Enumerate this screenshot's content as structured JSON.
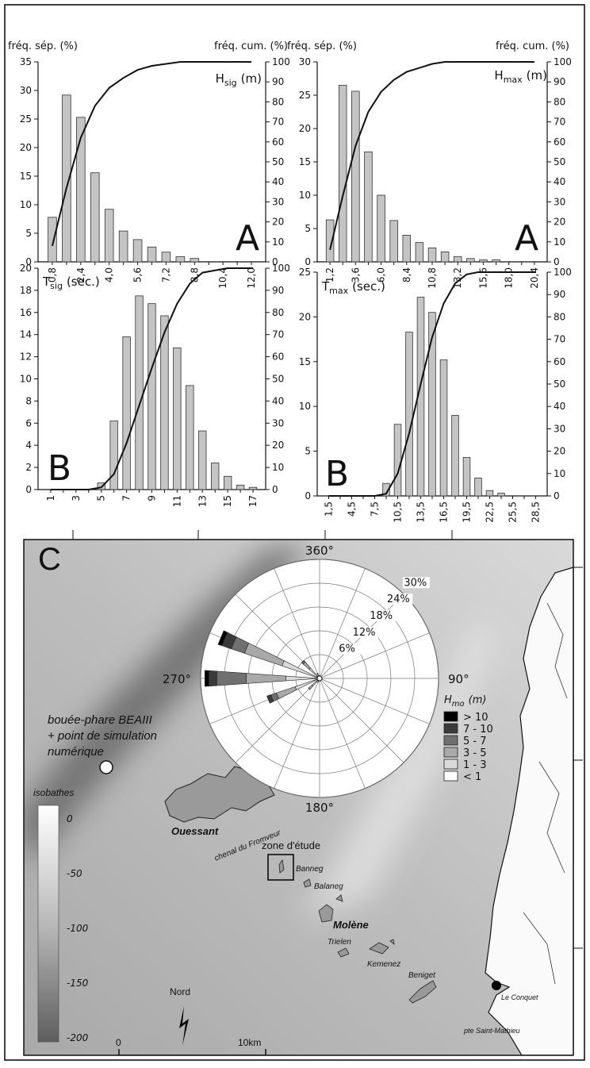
{
  "chart_data": [
    {
      "type": "bar",
      "panel": "A",
      "title": "H",
      "title_sub": "sig",
      "title_unit": "(m)",
      "ylabel": "fréq. sép. (%)",
      "y2label": "fréq. cum. (%)",
      "categories": [
        "0,8",
        null,
        "2,4",
        null,
        "4,0",
        null,
        "5,6",
        null,
        "7,2",
        null,
        "8,8",
        null,
        "10,4",
        null,
        "12,0"
      ],
      "series": [
        {
          "color": "#c4c4c4",
          "values": [
            7.8,
            29.2,
            25.3,
            15.6,
            9.2,
            5.4,
            3.9,
            2.6,
            1.7,
            0.9,
            0.6,
            0,
            0,
            0,
            0
          ]
        },
        {
          "type": "line",
          "axis": "y2",
          "color": "#111111",
          "values": [
            8,
            37,
            62,
            78,
            87,
            92,
            96,
            98,
            99,
            100,
            100,
            100,
            100,
            100,
            100
          ]
        }
      ],
      "ylim": [
        0,
        35
      ],
      "yticks": [
        0,
        5,
        10,
        15,
        20,
        25,
        30,
        35
      ],
      "y2lim": [
        0,
        100
      ],
      "y2ticks": [
        0,
        10,
        20,
        30,
        40,
        50,
        60,
        70,
        80,
        90,
        100
      ]
    },
    {
      "type": "bar",
      "panel": "A",
      "title": "H",
      "title_sub": "max",
      "title_unit": "(m)",
      "ylabel": "fréq. sép. (%)",
      "y2label": "fréq. cum. (%)",
      "categories": [
        "1,2",
        null,
        "3,6",
        null,
        "6,0",
        null,
        "8,4",
        null,
        "10,8",
        null,
        "13,2",
        null,
        "15,6",
        null,
        "18,0",
        null,
        "20,4"
      ],
      "series": [
        {
          "color": "#c4c4c4",
          "values": [
            6.3,
            26.5,
            25.6,
            16.5,
            10.0,
            6.2,
            4.0,
            2.9,
            2.1,
            1.5,
            0.8,
            0.5,
            0.3,
            0.3,
            0,
            0,
            0
          ]
        },
        {
          "type": "line",
          "axis": "y2",
          "color": "#111111",
          "values": [
            6,
            33,
            58,
            75,
            85,
            91,
            95,
            97,
            99,
            100,
            100,
            100,
            100,
            100,
            100,
            100,
            100
          ]
        }
      ],
      "ylim": [
        0,
        30
      ],
      "yticks": [
        0,
        5,
        10,
        15,
        20,
        25,
        30
      ],
      "y2lim": [
        0,
        100
      ],
      "y2ticks": [
        0,
        10,
        20,
        30,
        40,
        50,
        60,
        70,
        80,
        90,
        100
      ]
    },
    {
      "type": "bar",
      "panel": "B",
      "title": "T",
      "title_sub": "sig",
      "title_unit": "(sec.)",
      "categories": [
        "1",
        null,
        "3",
        null,
        "5",
        null,
        "7",
        null,
        "9",
        null,
        "11",
        null,
        "13",
        null,
        "15",
        null,
        "17"
      ],
      "series": [
        {
          "color": "#c4c4c4",
          "values": [
            0,
            0,
            0,
            0,
            0.6,
            6.2,
            13.8,
            17.5,
            16.8,
            15.7,
            12.8,
            9.4,
            5.3,
            2.4,
            1.2,
            0.4,
            0.2
          ]
        },
        {
          "type": "line",
          "axis": "y2",
          "color": "#111111",
          "values": [
            0,
            0,
            0,
            0,
            1,
            7,
            21,
            38,
            55,
            71,
            84,
            93,
            98,
            99,
            100,
            100,
            100
          ]
        }
      ],
      "ylim": [
        0,
        20
      ],
      "yticks": [
        0,
        2,
        4,
        6,
        8,
        10,
        12,
        14,
        16,
        18,
        20
      ],
      "y2lim": [
        0,
        100
      ],
      "y2ticks": [
        0,
        10,
        20,
        30,
        40,
        50,
        60,
        70,
        80,
        90,
        100
      ]
    },
    {
      "type": "bar",
      "panel": "B",
      "title": "T",
      "title_sub": "max",
      "title_unit": "(sec.)",
      "categories": [
        "1,5",
        null,
        "4,5",
        null,
        "7,5",
        null,
        "10,5",
        null,
        "13,5",
        null,
        "16,5",
        null,
        "19,5",
        null,
        "22,5",
        null,
        "25,5",
        null,
        "28,5"
      ],
      "series": [
        {
          "color": "#c4c4c4",
          "values": [
            0,
            0,
            0,
            0,
            0,
            1.4,
            8.0,
            18.3,
            22.2,
            20.5,
            15.2,
            9.0,
            4.3,
            2.0,
            0.6,
            0.3,
            0,
            0,
            0
          ]
        },
        {
          "type": "line",
          "axis": "y2",
          "color": "#111111",
          "values": [
            0,
            0,
            0,
            0,
            0,
            1,
            10,
            28,
            50,
            71,
            86,
            95,
            99,
            100,
            100,
            100,
            100,
            100,
            100
          ]
        }
      ],
      "ylim": [
        0,
        25
      ],
      "yticks": [
        0,
        5,
        10,
        15,
        20,
        25
      ],
      "y2lim": [
        0,
        100
      ],
      "y2ticks": [
        0,
        10,
        20,
        30,
        40,
        50,
        60,
        70,
        80,
        90,
        100
      ]
    },
    {
      "type": "rose",
      "legend_title": "H",
      "legend_title_sub": "mo",
      "legend_title_unit": "(m)",
      "x": [
        0,
        22.5,
        45,
        67.5,
        90,
        112.5,
        135,
        157.5,
        180,
        202.5,
        225,
        247.5,
        270,
        292.5,
        315,
        337.5
      ],
      "xticks": [
        {
          "value": 0,
          "label": "360°"
        },
        {
          "value": 90,
          "label": "90°"
        },
        {
          "value": 180,
          "label": "180°"
        },
        {
          "value": 270,
          "label": "270°"
        }
      ],
      "rlim": [
        0,
        30
      ],
      "rticks": [
        {
          "value": 6,
          "label": "6%"
        },
        {
          "value": 12,
          "label": "12%"
        },
        {
          "value": 18,
          "label": "18%"
        },
        {
          "value": 24,
          "label": "24%"
        },
        {
          "value": 30,
          "label": "30%"
        }
      ],
      "series": [
        {
          "name": "> 10",
          "color": "#000000",
          "values": [
            0,
            0,
            0,
            0,
            0,
            0,
            0,
            0,
            0,
            0,
            0,
            0,
            1,
            1,
            0,
            0
          ]
        },
        {
          "name": "7 - 10",
          "color": "#3a3a3a",
          "values": [
            0,
            0,
            0,
            0,
            0,
            0,
            0,
            0,
            0,
            0,
            0,
            1,
            2,
            2.5,
            0,
            0
          ]
        },
        {
          "name": "5 - 7",
          "color": "#707070",
          "values": [
            0,
            0,
            0,
            0,
            0,
            0,
            0,
            0,
            0,
            0,
            0,
            1.5,
            7.5,
            3.5,
            0.5,
            0
          ]
        },
        {
          "name": "3 - 5",
          "color": "#a9a9a9",
          "values": [
            0,
            0,
            0,
            0,
            0,
            0,
            0,
            0,
            0,
            0,
            1.2,
            5,
            10,
            10,
            2,
            0.3
          ]
        },
        {
          "name": "1 - 3",
          "color": "#dadada",
          "values": [
            0.5,
            0.4,
            0.3,
            0.3,
            0.4,
            0.3,
            0.3,
            0.3,
            0.4,
            0.8,
            2,
            6,
            8,
            9.5,
            3,
            0.8
          ]
        },
        {
          "name": "< 1",
          "color": "#ffffff",
          "values": [
            0.3,
            0.3,
            0.3,
            0.3,
            0.3,
            0.3,
            0.3,
            0.3,
            0.3,
            0.3,
            0.5,
            0.5,
            0.5,
            0.5,
            0.5,
            0.3
          ]
        }
      ]
    }
  ],
  "map": {
    "panel": "C",
    "buoy": [
      "bouée-phare BEAIII",
      "+ point de simulation",
      "numérique"
    ],
    "places": {
      "ouessant": "Ouessant",
      "channel": "chenal du Fromveur",
      "zone": "zone d'étude",
      "banneg": "Banneg",
      "balaneg": "Balaneg",
      "molene": "Molène",
      "trielen": "Trielen",
      "kemenez": "Kemenez",
      "beniget": "Beniget",
      "conquet": "Le Conquet",
      "mathieu": "pte Saint-Mathieu"
    },
    "isobath_title": "isobathes",
    "isobaths": [
      0,
      -50,
      -100,
      -150,
      -200
    ],
    "north": "Nord",
    "scale_start": "0",
    "scale_end": "10km"
  }
}
